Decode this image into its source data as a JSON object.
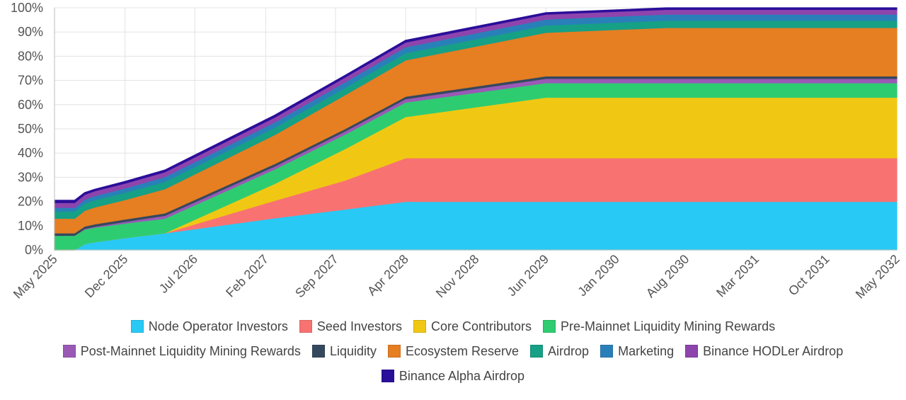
{
  "chart_data": {
    "type": "area",
    "stacked": true,
    "title": "",
    "xlabel": "",
    "ylabel": "",
    "ylim": [
      0,
      100
    ],
    "y_ticks": [
      "0%",
      "10%",
      "20%",
      "30%",
      "40%",
      "50%",
      "60%",
      "70%",
      "80%",
      "90%",
      "100%"
    ],
    "x_ticks": [
      "May 2025",
      "Dec 2025",
      "Jul 2026",
      "Feb 2027",
      "Sep 2027",
      "Apr 2028",
      "Nov 2028",
      "Jun 2029",
      "Jan 2030",
      "Aug 2030",
      "Mar 2031",
      "Oct 2031",
      "May 2032"
    ],
    "x": [
      "2025-05",
      "2025-06",
      "2025-07",
      "2025-08",
      "2025-09",
      "2025-12",
      "2026-04",
      "2027-03",
      "2027-10",
      "2028-04",
      "2029-06",
      "2030-06",
      "2032-05"
    ],
    "grid": true,
    "legend_position": "bottom",
    "series": [
      {
        "name": "Node Operator Investors",
        "color": "#29c9f5",
        "values": [
          0,
          0,
          0,
          2.5,
          3.3,
          5,
          7,
          13.2,
          16.8,
          20,
          20,
          20,
          20
        ]
      },
      {
        "name": "Seed Investors",
        "color": "#f87272",
        "values": [
          0,
          0,
          0,
          0,
          0,
          0,
          0,
          7.2,
          12.0,
          18,
          18,
          18,
          18
        ]
      },
      {
        "name": "Core Contributors",
        "color": "#f0c814",
        "values": [
          0,
          0,
          0,
          0,
          0,
          0,
          0,
          7,
          13.0,
          17,
          25,
          25,
          25
        ]
      },
      {
        "name": "Pre-Mainnet Liquidity Mining Rewards",
        "color": "#2ecc71",
        "values": [
          6,
          6,
          6,
          6,
          6,
          6,
          6,
          6,
          6,
          6,
          6,
          6,
          6
        ]
      },
      {
        "name": "Post-Mainnet Liquidity Mining Rewards",
        "color": "#9b59b6",
        "values": [
          0,
          0,
          0,
          0.3,
          0.4,
          0.7,
          1.2,
          1.2,
          1.3,
          1.4,
          1.8,
          1.8,
          1.8
        ]
      },
      {
        "name": "Liquidity",
        "color": "#34495e",
        "values": [
          1,
          1,
          1,
          1,
          1,
          1,
          1,
          1,
          1,
          1,
          1,
          1,
          1
        ]
      },
      {
        "name": "Ecosystem Reserve",
        "color": "#e67e22",
        "values": [
          6,
          6,
          6,
          6.5,
          7,
          8,
          10,
          12,
          14.0,
          15,
          18,
          20,
          20
        ]
      },
      {
        "name": "Airdrop",
        "color": "#16a085",
        "values": [
          3,
          3,
          3,
          3,
          3,
          3,
          3,
          3,
          3,
          3,
          3,
          3,
          3
        ]
      },
      {
        "name": "Marketing",
        "color": "#2980b9",
        "values": [
          1.5,
          1.5,
          1.5,
          1.6,
          1.7,
          1.8,
          2.0,
          2.2,
          2.3,
          2.4,
          2.5,
          2.5,
          2.5
        ]
      },
      {
        "name": "Binance HODLer Airdrop",
        "color": "#8e44ad",
        "values": [
          2,
          2,
          2,
          2,
          2,
          2,
          2,
          2,
          2,
          2,
          2,
          2,
          2
        ]
      },
      {
        "name": "Binance Alpha Airdrop",
        "color": "#2a0f9a",
        "values": [
          1,
          1,
          1,
          0.8,
          0.7,
          0.8,
          0.8,
          0.9,
          0.8,
          0.8,
          0.7,
          0.7,
          0.7
        ]
      }
    ]
  }
}
